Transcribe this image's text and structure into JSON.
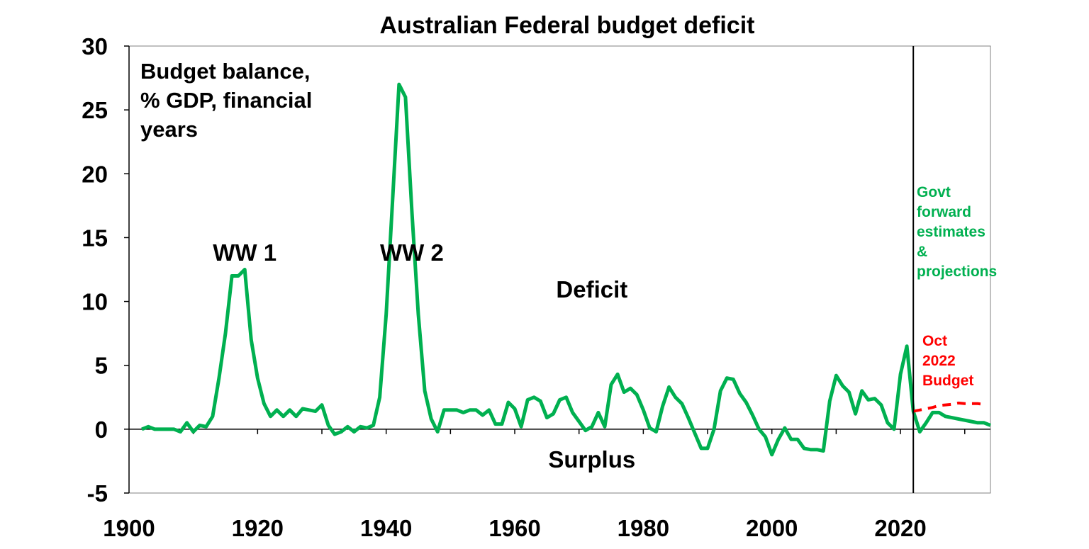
{
  "chart_data": {
    "type": "line",
    "title": "Australian Federal budget deficit",
    "subtitle_lines": [
      "Budget balance,",
      "% GDP, financial",
      "years"
    ],
    "xlim": [
      1900,
      2034
    ],
    "ylim": [
      -5,
      30
    ],
    "x_ticks": [
      1900,
      1920,
      1940,
      1960,
      1980,
      2000,
      2020
    ],
    "y_ticks": [
      30,
      25,
      20,
      15,
      10,
      5,
      0,
      -5
    ],
    "grid": false,
    "legend": "none",
    "vline_x": 2022,
    "colors": {
      "actual": "#00b050",
      "budget": "#ff0000",
      "axis": "#000000",
      "frame": "#808080"
    },
    "annotations": [
      {
        "text": "WW 1",
        "x": 1918,
        "y": 13.2,
        "color": "#000000"
      },
      {
        "text": "WW 2",
        "x": 1944,
        "y": 13.2,
        "color": "#000000"
      },
      {
        "text": "Deficit",
        "x": 1972,
        "y": 10.3,
        "color": "#000000"
      },
      {
        "text": "Surplus",
        "x": 1972,
        "y": -3.0,
        "color": "#000000"
      }
    ],
    "govt_label": [
      "Govt",
      "forward",
      "estimates",
      "&",
      "projections"
    ],
    "budget_label": [
      "Oct",
      "2022",
      "Budget"
    ],
    "series": [
      {
        "key": "actual",
        "x": [
          1902,
          1903,
          1904,
          1905,
          1906,
          1907,
          1908,
          1909,
          1910,
          1911,
          1912,
          1913,
          1914,
          1915,
          1916,
          1917,
          1918,
          1919,
          1920,
          1921,
          1922,
          1923,
          1924,
          1925,
          1926,
          1927,
          1928,
          1929,
          1930,
          1931,
          1932,
          1933,
          1934,
          1935,
          1936,
          1937,
          1938,
          1939,
          1940,
          1941,
          1942,
          1943,
          1944,
          1945,
          1946,
          1947,
          1948,
          1949,
          1950,
          1951,
          1952,
          1953,
          1954,
          1955,
          1956,
          1957,
          1958,
          1959,
          1960,
          1961,
          1962,
          1963,
          1964,
          1965,
          1966,
          1967,
          1968,
          1969,
          1970,
          1971,
          1972,
          1973,
          1974,
          1975,
          1976,
          1977,
          1978,
          1979,
          1980,
          1981,
          1982,
          1983,
          1984,
          1985,
          1986,
          1987,
          1988,
          1989,
          1990,
          1991,
          1992,
          1993,
          1994,
          1995,
          1996,
          1997,
          1998,
          1999,
          2000,
          2001,
          2002,
          2003,
          2004,
          2005,
          2006,
          2007,
          2008,
          2009,
          2010,
          2011,
          2012,
          2013,
          2014,
          2015,
          2016,
          2017,
          2018,
          2019,
          2020,
          2021,
          2022,
          2023,
          2024,
          2025,
          2026,
          2027,
          2028,
          2029,
          2030,
          2031,
          2032,
          2033,
          2034
        ],
        "values": [
          0,
          0.2,
          0,
          0,
          0,
          0,
          -0.2,
          0.5,
          -0.2,
          0.3,
          0.2,
          1,
          4,
          7.5,
          12,
          12,
          12.5,
          7,
          4,
          2,
          1,
          1.5,
          1,
          1.5,
          1,
          1.6,
          1.5,
          1.4,
          1.9,
          0.3,
          -0.4,
          -0.2,
          0.2,
          -0.2,
          0.2,
          0.1,
          0.3,
          2.5,
          9,
          18,
          27,
          26,
          17,
          9,
          3,
          0.8,
          -0.2,
          1.5,
          1.5,
          1.5,
          1.3,
          1.5,
          1.5,
          1.1,
          1.5,
          0.4,
          0.4,
          2.1,
          1.6,
          0.2,
          2.3,
          2.5,
          2.2,
          0.9,
          1.2,
          2.3,
          2.5,
          1.3,
          0.6,
          -0.1,
          0.2,
          1.3,
          0.2,
          3.5,
          4.3,
          2.9,
          3.2,
          2.7,
          1.5,
          0.1,
          -0.2,
          1.8,
          3.3,
          2.5,
          2,
          0.9,
          -0.3,
          -1.5,
          -1.5,
          0,
          3,
          4,
          3.9,
          2.8,
          2.1,
          1.1,
          0,
          -0.6,
          -2,
          -0.8,
          0.1,
          -0.8,
          -0.8,
          -1.5,
          -1.6,
          -1.6,
          -1.7,
          2.2,
          4.2,
          3.4,
          2.9,
          1.2,
          3,
          2.3,
          2.4,
          1.9,
          0.5,
          0,
          4.3,
          6.5,
          1.4,
          -0.2,
          0.5,
          1.3,
          1.3,
          1,
          0.9,
          0.8,
          0.7,
          0.6,
          0.5,
          0.5,
          0.3
        ]
      },
      {
        "key": "budget",
        "x": [
          2022,
          2023,
          2024,
          2025,
          2026,
          2027,
          2028,
          2029,
          2030,
          2031,
          2032,
          2033
        ],
        "values": [
          1.4,
          1.5,
          1.6,
          1.7,
          1.85,
          1.9,
          1.95,
          2.05,
          2.0,
          2.0,
          2.0,
          1.95
        ]
      }
    ]
  }
}
